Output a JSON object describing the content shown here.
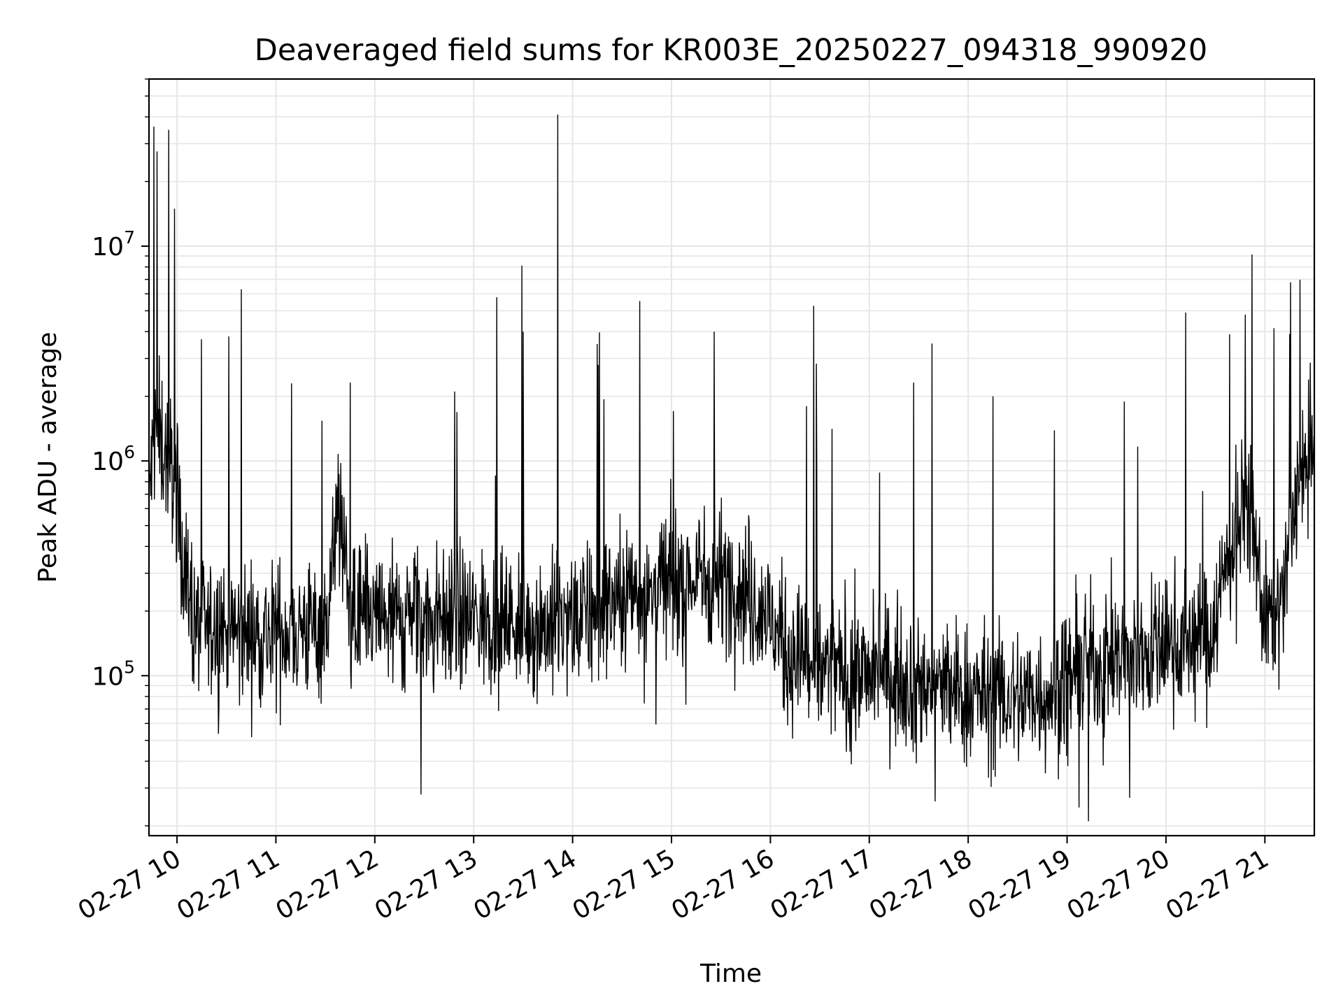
{
  "chart_data": {
    "type": "line",
    "title": "Deaveraged field sums for KR003E_20250227_094318_990920",
    "xlabel": "Time",
    "ylabel": "Peak ADU - average",
    "yscale": "log",
    "ylim": [
      18000,
      60000000
    ],
    "xlim": [
      "2025-02-27 09:43",
      "2025-02-27 21:30"
    ],
    "x_ticks": [
      {
        "label": "02-27 10",
        "value": "2025-02-27 10:00"
      },
      {
        "label": "02-27 11",
        "value": "2025-02-27 11:00"
      },
      {
        "label": "02-27 12",
        "value": "2025-02-27 12:00"
      },
      {
        "label": "02-27 13",
        "value": "2025-02-27 13:00"
      },
      {
        "label": "02-27 14",
        "value": "2025-02-27 14:00"
      },
      {
        "label": "02-27 15",
        "value": "2025-02-27 15:00"
      },
      {
        "label": "02-27 16",
        "value": "2025-02-27 16:00"
      },
      {
        "label": "02-27 17",
        "value": "2025-02-27 17:00"
      },
      {
        "label": "02-27 18",
        "value": "2025-02-27 18:00"
      },
      {
        "label": "02-27 19",
        "value": "2025-02-27 19:00"
      },
      {
        "label": "02-27 20",
        "value": "2025-02-27 20:00"
      },
      {
        "label": "02-27 21",
        "value": "2025-02-27 21:00"
      }
    ],
    "y_ticks": [
      {
        "base": "10",
        "exp": "5",
        "value": 100000
      },
      {
        "base": "10",
        "exp": "6",
        "value": 1000000
      },
      {
        "base": "10",
        "exp": "7",
        "value": 10000000
      }
    ],
    "grid": true,
    "grid_minor": true,
    "line_color": "#000000",
    "grid_color": "#e6e6e6",
    "series": [
      {
        "x": [
          "2025-02-27 09:43",
          "2025-02-27 09:45",
          "2025-02-27 09:47",
          "2025-02-27 09:49",
          "2025-02-27 09:51",
          "2025-02-27 09:53",
          "2025-02-27 09:55",
          "2025-02-27 09:57",
          "2025-02-27 09:59",
          "2025-02-27 10:02",
          "2025-02-27 10:05",
          "2025-02-27 10:09",
          "2025-02-27 10:13",
          "2025-02-27 10:17",
          "2025-02-27 10:21",
          "2025-02-27 10:25",
          "2025-02-27 10:30",
          "2025-02-27 10:40",
          "2025-02-27 10:50",
          "2025-02-27 11:00",
          "2025-02-27 11:15",
          "2025-02-27 11:30",
          "2025-02-27 11:38",
          "2025-02-27 11:45",
          "2025-02-27 11:55",
          "2025-02-27 12:10",
          "2025-02-27 12:30",
          "2025-02-27 12:50",
          "2025-02-27 13:10",
          "2025-02-27 13:30",
          "2025-02-27 13:50",
          "2025-02-27 14:10",
          "2025-02-27 14:30",
          "2025-02-27 14:50",
          "2025-02-27 15:00",
          "2025-02-27 15:15",
          "2025-02-27 15:30",
          "2025-02-27 15:45",
          "2025-02-27 16:00",
          "2025-02-27 16:10",
          "2025-02-27 16:30",
          "2025-02-27 16:50",
          "2025-02-27 17:10",
          "2025-02-27 17:30",
          "2025-02-27 17:50",
          "2025-02-27 18:10",
          "2025-02-27 18:30",
          "2025-02-27 18:50",
          "2025-02-27 19:10",
          "2025-02-27 19:30",
          "2025-02-27 19:50",
          "2025-02-27 20:10",
          "2025-02-27 20:25",
          "2025-02-27 20:40",
          "2025-02-27 20:50",
          "2025-02-27 21:00",
          "2025-02-27 21:10",
          "2025-02-27 21:20",
          "2025-02-27 21:30"
        ],
        "y": [
          700000,
          1000000,
          1400000,
          1300000,
          1200000,
          1100000,
          1000000,
          900000,
          850000,
          500000,
          300000,
          200000,
          180000,
          170000,
          160000,
          165000,
          170000,
          160000,
          155000,
          160000,
          165000,
          170000,
          600000,
          200000,
          180000,
          185000,
          190000,
          185000,
          180000,
          175000,
          170000,
          190000,
          240000,
          260000,
          270000,
          280000,
          290000,
          260000,
          180000,
          130000,
          110000,
          100000,
          105000,
          95000,
          85000,
          80000,
          78000,
          85000,
          110000,
          120000,
          130000,
          150000,
          140000,
          400000,
          700000,
          180000,
          200000,
          800000,
          1100000
        ]
      }
    ],
    "spikes": [
      {
        "x": "2025-02-27 09:46",
        "y": 36000000
      },
      {
        "x": "2025-02-27 10:39",
        "y": 6300000
      },
      {
        "x": "2025-02-27 13:51",
        "y": 41000000
      },
      {
        "x": "2025-02-27 13:30",
        "y": 4000000
      },
      {
        "x": "2025-02-27 15:26",
        "y": 4000000
      },
      {
        "x": "2025-02-27 20:48",
        "y": 4800000
      },
      {
        "x": "2025-02-27 21:15",
        "y": 3900000
      },
      {
        "x": "2025-02-27 14:15",
        "y": 3500000
      },
      {
        "x": "2025-02-27 16:22",
        "y": 1800000
      },
      {
        "x": "2025-02-27 18:15",
        "y": 2000000
      },
      {
        "x": "2025-02-27 19:13",
        "y": 21000
      },
      {
        "x": "2025-02-27 17:40",
        "y": 26000
      },
      {
        "x": "2025-02-27 12:28",
        "y": 28000
      },
      {
        "x": "2025-02-27 19:38",
        "y": 27000
      }
    ]
  }
}
